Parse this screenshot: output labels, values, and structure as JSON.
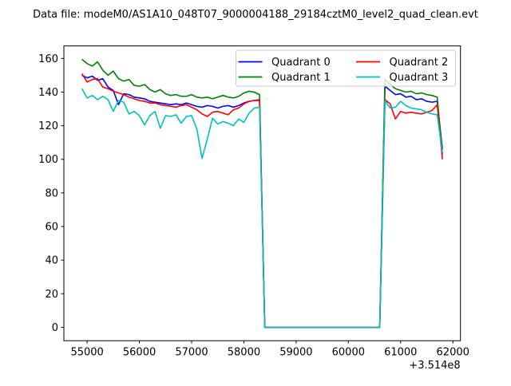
{
  "figure": {
    "background": "#ffffff",
    "frame_color": "#000000"
  },
  "chart_data": {
    "type": "line",
    "title": "Data file: modeM0/AS1A10_048T07_9000004188_29184cztM0_level2_quad_clean.evt",
    "xlabel": "",
    "ylabel": "",
    "x_offset_text": "+3.514e8",
    "grid": false,
    "legend_position": "upper right",
    "legend_columns": 2,
    "legend_framealpha": 0.8,
    "xlim": [
      54555,
      62145
    ],
    "ylim": [
      -7.975,
      167.475
    ],
    "x_ticks": [
      55000,
      56000,
      57000,
      58000,
      59000,
      60000,
      61000,
      62000
    ],
    "x_tick_labels": [
      "55000",
      "56000",
      "57000",
      "58000",
      "59000",
      "60000",
      "61000",
      "62000"
    ],
    "y_ticks": [
      0,
      20,
      40,
      60,
      80,
      100,
      120,
      140,
      160
    ],
    "y_tick_labels": [
      "0",
      "20",
      "40",
      "60",
      "80",
      "100",
      "120",
      "140",
      "160"
    ],
    "x": [
      54900,
      55000,
      55100,
      55200,
      55300,
      55400,
      55500,
      55600,
      55700,
      55800,
      55900,
      56000,
      56100,
      56200,
      56300,
      56400,
      56500,
      56600,
      56700,
      56800,
      56900,
      57000,
      57100,
      57200,
      57300,
      57400,
      57500,
      57600,
      57700,
      57800,
      57900,
      58000,
      58100,
      58200,
      58300,
      58400,
      58500,
      58600,
      58700,
      58800,
      58900,
      59000,
      59100,
      59200,
      59300,
      59400,
      59500,
      59600,
      59700,
      59800,
      59900,
      60000,
      60100,
      60200,
      60300,
      60400,
      60500,
      60600,
      60700,
      60800,
      60900,
      61000,
      61100,
      61200,
      61300,
      61400,
      61500,
      61600,
      61700,
      61800
    ],
    "series": [
      {
        "name": "Quadrant 0",
        "color": "#0000ff",
        "values": [
          150,
          148.5,
          149.5,
          147,
          148,
          143,
          141,
          132.5,
          139,
          138.5,
          137,
          136.5,
          136,
          134.5,
          134,
          133.5,
          133,
          132.5,
          133,
          132.5,
          133.5,
          132.5,
          131.5,
          131,
          132,
          131.5,
          130.5,
          131.5,
          132,
          131,
          132,
          133.5,
          134.5,
          135,
          135,
          0,
          0,
          0,
          0,
          0,
          0,
          0,
          0,
          0,
          0,
          0,
          0,
          0,
          0,
          0,
          0,
          0,
          0,
          0,
          0,
          0,
          0,
          0,
          143.5,
          141,
          138.5,
          139,
          137,
          137.5,
          135.5,
          136,
          134.5,
          134,
          134.5,
          106
        ]
      },
      {
        "name": "Quadrant 1",
        "color": "#008000",
        "values": [
          159.5,
          157,
          155.5,
          158,
          153,
          150,
          152.5,
          148,
          146.5,
          147.5,
          144,
          143.5,
          144.5,
          141.5,
          140,
          141.5,
          139,
          138,
          138.5,
          137.5,
          137.5,
          138.5,
          137,
          136.5,
          137,
          136,
          137,
          138,
          137,
          136.5,
          137.5,
          139.5,
          140.5,
          140,
          138.5,
          0,
          0,
          0,
          0,
          0,
          0,
          0,
          0,
          0,
          0,
          0,
          0,
          0,
          0,
          0,
          0,
          0,
          0,
          0,
          0,
          0,
          0,
          0,
          147.5,
          144.5,
          142,
          141,
          140,
          140.5,
          139,
          139.5,
          138.5,
          138,
          137,
          103
        ]
      },
      {
        "name": "Quadrant 2",
        "color": "#ff0000",
        "values": [
          151,
          146,
          147.5,
          148,
          143,
          142,
          140.5,
          139.5,
          138.5,
          137,
          136,
          135,
          134.5,
          133.5,
          133.5,
          132.5,
          132,
          131.5,
          131,
          132,
          132.5,
          131,
          129.5,
          127,
          125.5,
          128,
          128.5,
          127.5,
          126.5,
          129.5,
          130.5,
          133,
          134.5,
          135,
          135.5,
          0,
          0,
          0,
          0,
          0,
          0,
          0,
          0,
          0,
          0,
          0,
          0,
          0,
          0,
          0,
          0,
          0,
          0,
          0,
          0,
          0,
          0,
          0,
          135.5,
          133,
          124,
          128.5,
          127.5,
          128,
          127.5,
          127,
          128,
          129,
          132.5,
          100
        ]
      },
      {
        "name": "Quadrant 3",
        "color": "#00bfbf",
        "values": [
          142,
          136.5,
          138,
          135.5,
          137.5,
          135.5,
          128.5,
          135,
          134,
          127,
          128.5,
          126,
          120.5,
          126,
          128.5,
          118.5,
          126,
          125.5,
          126.5,
          121.5,
          125.5,
          126,
          118,
          100.5,
          112,
          124.5,
          121,
          122.5,
          121.5,
          120,
          124,
          122,
          127.5,
          130.5,
          131,
          0,
          0,
          0,
          0,
          0,
          0,
          0,
          0,
          0,
          0,
          0,
          0,
          0,
          0,
          0,
          0,
          0,
          0,
          0,
          0,
          0,
          0,
          0,
          135,
          130.5,
          131,
          134.5,
          132,
          130.5,
          130,
          129.5,
          128,
          127,
          126.5,
          104
        ]
      }
    ]
  }
}
